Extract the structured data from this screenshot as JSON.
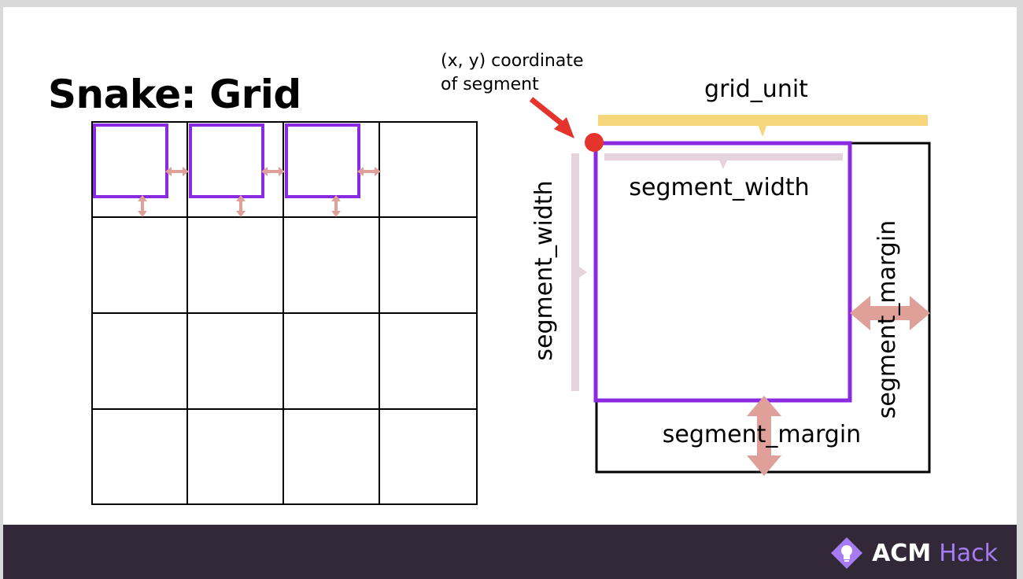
{
  "slide": {
    "title": "Snake: Grid",
    "annotation": {
      "line1": "(x, y) coordinate",
      "line2": "of segment"
    },
    "labels": {
      "grid_unit": "grid_unit",
      "segment_width_top": "segment_width",
      "segment_width_side": "segment_width",
      "segment_margin_bottom": "segment_margin",
      "segment_margin_side": "segment_margin"
    },
    "colors": {
      "segment": "#8a2be2",
      "arrow": "#e0a09a",
      "grid_unit_bar": "#f5d67a",
      "width_bar": "#e6d3dc",
      "pointer": "#e5342b",
      "footer": "#322837"
    }
  },
  "footer": {
    "brand_word1": "ACM",
    "brand_word2": "Hack",
    "logo_icon": "lightbulb-diamond-icon"
  }
}
